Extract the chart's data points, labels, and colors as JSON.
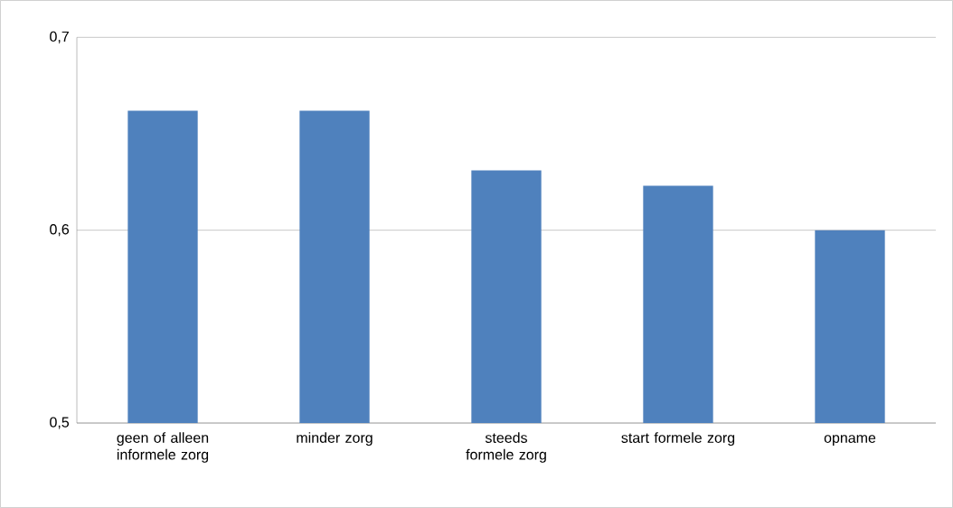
{
  "chart_data": {
    "type": "bar",
    "categories": [
      "geen of alleen informele zorg",
      "minder zorg",
      "steeds formele zorg",
      "start formele zorg",
      "opname"
    ],
    "values": [
      0.662,
      0.662,
      0.631,
      0.623,
      0.6
    ],
    "color": "#4f81bd",
    "ylim": [
      0.5,
      0.7
    ],
    "yticks": [
      {
        "value": 0.5,
        "label": "0,5"
      },
      {
        "value": 0.6,
        "label": "0,6"
      },
      {
        "value": 0.7,
        "label": "0,7"
      }
    ],
    "grid": "y"
  }
}
